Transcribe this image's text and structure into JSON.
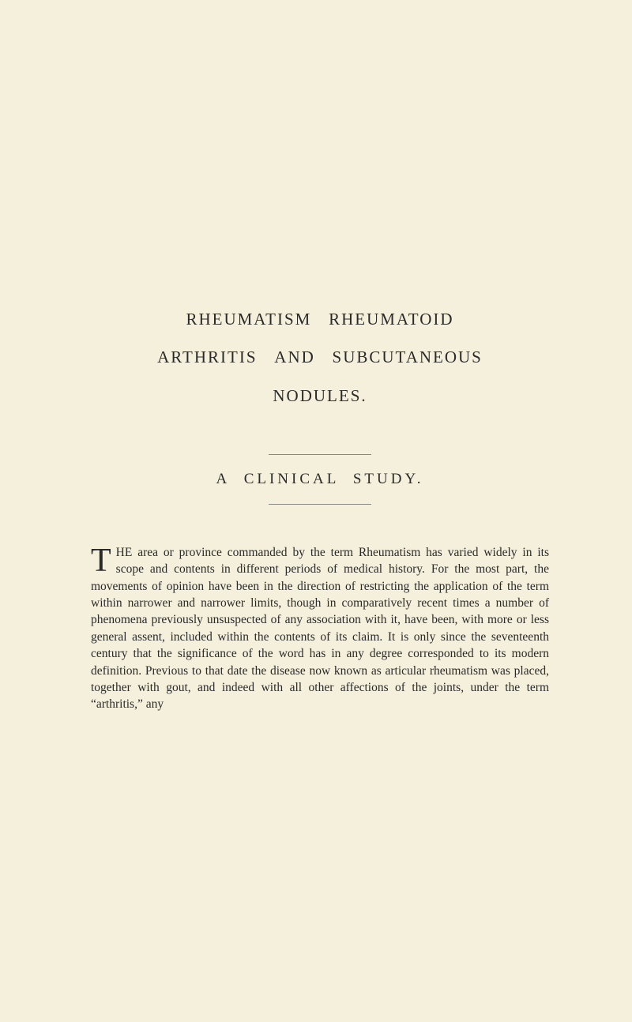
{
  "title": {
    "line1": "RHEUMATISM   RHEUMATOID",
    "line2": "ARTHRITIS   AND   SUBCUTANEOUS",
    "line3": "NODULES."
  },
  "subtitle": "A  CLINICAL  STUDY.",
  "body": {
    "dropcap": "T",
    "text": "HE area or province commanded by the term Rheumatism has varied widely in its scope and contents in different periods of medical history. For the most part, the movements of opinion have been in the direction of restricting the application of the term within narrower and narrower limits, though in comparatively recent times a number of phenomena previously unsuspected of any association with it, have been, with more or less general assent, included within the contents of its claim. It is only since the seventeenth century that the significance of the word has in any degree corresponded to its modern definition. Previous to that date the disease now known as articular rheumatism was placed, together with gout, and indeed with all other affections of the joints, under the term “arthritis,” any"
  },
  "colors": {
    "background": "#f5f0dc",
    "text": "#2a2a2a",
    "divider": "#888888"
  },
  "typography": {
    "title_fontsize": 21,
    "title_letterspacing": 2,
    "subtitle_fontsize": 19,
    "subtitle_letterspacing": 4,
    "body_fontsize": 15.5,
    "body_lineheight": 1.38,
    "dropcap_fontsize": 42
  }
}
